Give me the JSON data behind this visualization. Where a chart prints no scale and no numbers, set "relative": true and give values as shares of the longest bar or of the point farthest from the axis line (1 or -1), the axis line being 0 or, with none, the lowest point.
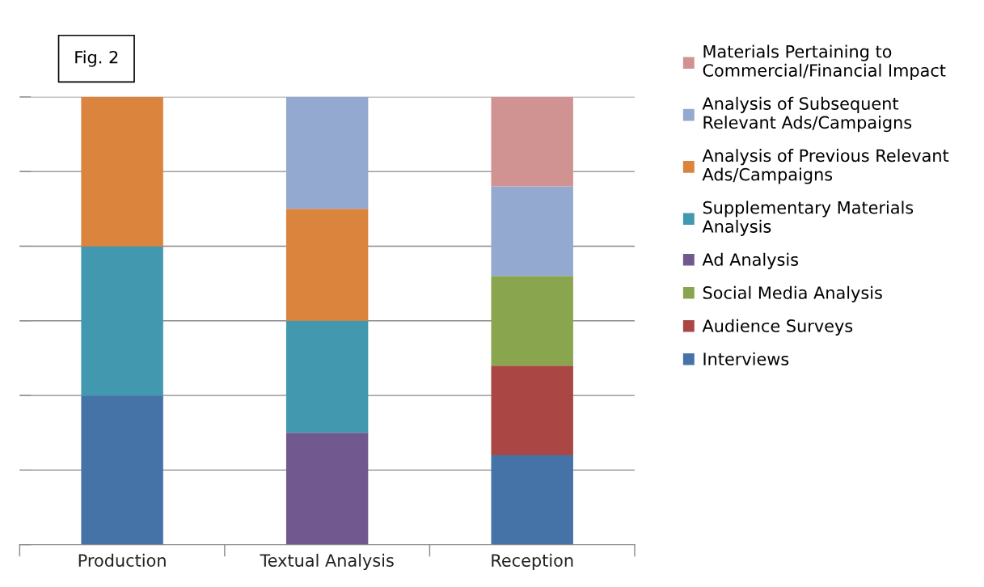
{
  "chart_data": {
    "type": "bar",
    "stacked": true,
    "relative": true,
    "grid": "y",
    "legend": "right",
    "annotations": [
      "Fig. 2"
    ],
    "categories": [
      "Production",
      "Textual Analysis",
      "Reception"
    ],
    "series": [
      {
        "name": "Interviews",
        "color": "#4572a7",
        "values": [
          0.333,
          null,
          0.2
        ]
      },
      {
        "name": "Audience Surveys",
        "color": "#aa4643",
        "values": [
          null,
          null,
          0.2
        ]
      },
      {
        "name": "Social Media Analysis",
        "color": "#89a54e",
        "values": [
          null,
          null,
          0.2
        ]
      },
      {
        "name": "Ad Analysis",
        "color": "#71588f",
        "values": [
          null,
          0.25,
          null
        ]
      },
      {
        "name": "Supplementary Materials Analysis",
        "color": "#4198af",
        "values": [
          0.333,
          0.25,
          null
        ]
      },
      {
        "name": "Analysis of Previous Relevant Ads/Campaigns",
        "color": "#db843d",
        "values": [
          0.334,
          0.25,
          null
        ]
      },
      {
        "name": "Analysis of Subsequent Relevant Ads/Campaigns",
        "color": "#93a9cf",
        "values": [
          null,
          0.25,
          0.2
        ]
      },
      {
        "name": "Materials Pertaining to Commercial/Financial Impact",
        "color": "#d19392",
        "values": [
          null,
          null,
          0.2
        ]
      }
    ]
  }
}
